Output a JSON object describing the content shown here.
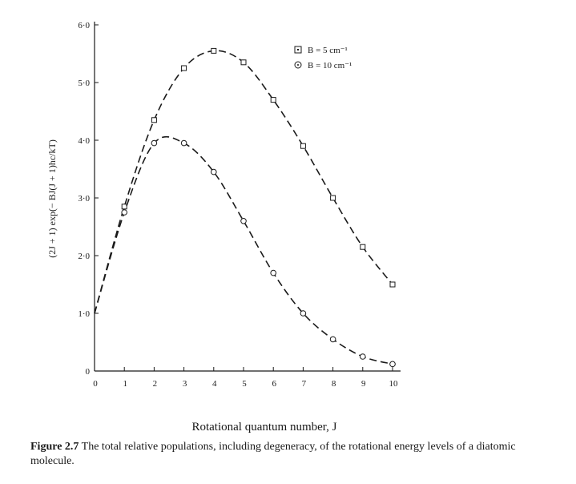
{
  "chart_data": {
    "type": "line",
    "title": "",
    "xlabel": "Rotational quantum number, J",
    "ylabel": "(2J + 1) exp(− BJ(J + 1)hc/kT)",
    "xlim": [
      0,
      10
    ],
    "ylim": [
      0,
      6
    ],
    "x": [
      0,
      1,
      2,
      3,
      4,
      5,
      6,
      7,
      8,
      9,
      10
    ],
    "xticks": [
      "0",
      "1",
      "2",
      "3",
      "4",
      "5",
      "6",
      "7",
      "8",
      "9",
      "10"
    ],
    "yticks": [
      "0",
      "1·0",
      "2·0",
      "3·0",
      "4·0",
      "5·0",
      "6·0"
    ],
    "ytick_values": [
      0,
      1,
      2,
      3,
      4,
      5,
      6
    ],
    "legend_position": "top-right",
    "series": [
      {
        "name": "B = 5 cm⁻¹",
        "marker": "square",
        "values": [
          1.0,
          2.85,
          4.35,
          5.25,
          5.55,
          5.35,
          4.7,
          3.9,
          3.0,
          2.15,
          1.5
        ]
      },
      {
        "name": "B = 10 cm⁻¹",
        "marker": "circle",
        "values": [
          1.0,
          2.75,
          3.95,
          3.95,
          3.45,
          2.6,
          1.7,
          1.0,
          0.55,
          0.25,
          0.12
        ]
      }
    ]
  },
  "caption": {
    "label": "Figure 2.7",
    "text": " The total relative populations, including degeneracy, of the rotational energy levels of a diatomic molecule."
  }
}
